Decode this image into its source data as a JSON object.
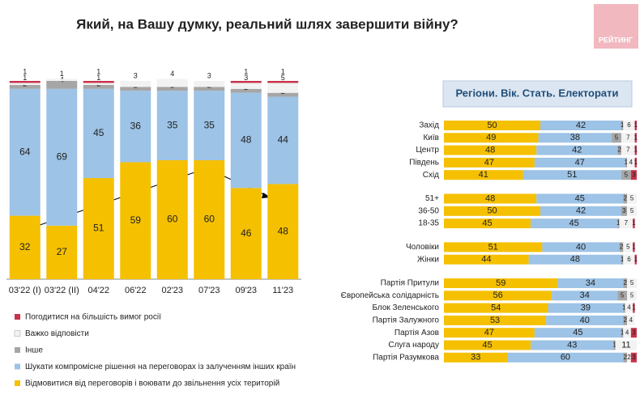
{
  "title": "Який, на Вашу думку, реальний шлях завершити війну?",
  "logo": "РЕЙТИНГ",
  "chart_data": [
    {
      "type": "stacked-bar",
      "categories": [
        "03'22 (I)",
        "03'22 (II)",
        "04'22",
        "06'22",
        "02'23",
        "07'23",
        "09'23",
        "11'23"
      ],
      "ylim": [
        0,
        100
      ],
      "series": [
        {
          "name": "Відмовитися від переговорів і воювати до звільнення усіх територій",
          "color": "#f5c000",
          "values": [
            32,
            27,
            51,
            59,
            60,
            60,
            46,
            48
          ]
        },
        {
          "name": "Шукати компромісне рішення на переговорах із залученням інших країн",
          "color": "#9dc3e6",
          "values": [
            64,
            69,
            45,
            36,
            35,
            35,
            48,
            44
          ]
        },
        {
          "name": "Інше",
          "color": "#a6a6a6",
          "values": [
            2,
            4,
            2,
            2,
            2,
            2,
            2,
            2
          ]
        },
        {
          "name": "Важко відповісти",
          "color": "#f2f2f2",
          "values": [
            1,
            1,
            1,
            3,
            4,
            3,
            3,
            5
          ]
        },
        {
          "name": "Погодитися на більшість вимог росії",
          "color": "#c8324a",
          "values": [
            1,
            0,
            1,
            0,
            0,
            0,
            1,
            1
          ]
        }
      ]
    },
    {
      "type": "stacked-barh",
      "title": "Регіони. Вік. Стать. Електорати",
      "categories": [
        "Захід",
        "Київ",
        "Центр",
        "Південь",
        "Схід",
        "51+",
        "36-50",
        "18-35",
        "Чоловіки",
        "Жінки",
        "Партія Притули",
        "Європейська солідарність",
        "Блок Зеленського",
        "Партія Залужного",
        "Партія Азов",
        "Слуга народу",
        "Партія  Разумкова"
      ],
      "xlim": [
        0,
        100
      ],
      "series": [
        {
          "color": "#f5c000",
          "values": [
            50,
            49,
            48,
            47,
            41,
            48,
            50,
            45,
            51,
            44,
            59,
            56,
            54,
            53,
            47,
            45,
            33
          ]
        },
        {
          "color": "#9dc3e6",
          "values": [
            42,
            38,
            42,
            47,
            51,
            45,
            42,
            45,
            40,
            48,
            34,
            34,
            39,
            40,
            45,
            43,
            60
          ]
        },
        {
          "color": "#a6a6a6",
          "values": [
            1,
            5,
            2,
            1,
            5,
            2,
            3,
            1,
            2,
            1,
            2,
            5,
            1,
            2,
            1,
            1,
            2
          ]
        },
        {
          "color": "#f2f2f2",
          "values": [
            6,
            7,
            7,
            4,
            0,
            5,
            5,
            7,
            5,
            6,
            5,
            5,
            4,
            4,
            4,
            11,
            2
          ]
        },
        {
          "color": "#c8324a",
          "values": [
            1,
            1,
            1,
            1,
            3,
            0,
            0,
            1,
            1,
            1,
            0,
            0,
            1,
            0,
            3,
            0,
            3
          ]
        }
      ]
    }
  ]
}
